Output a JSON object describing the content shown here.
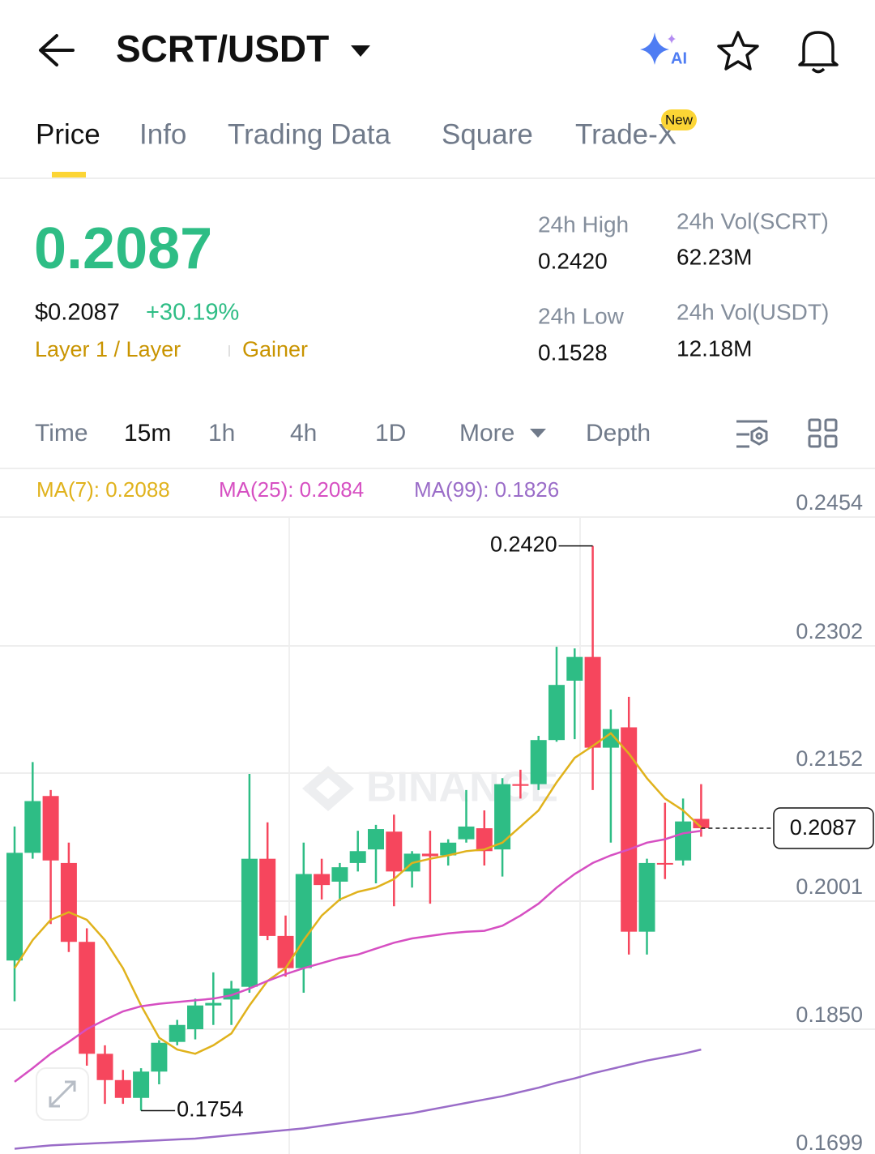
{
  "header": {
    "pair": "SCRT/USDT"
  },
  "tabs": [
    "Price",
    "Info",
    "Trading Data",
    "Square",
    "Trade-X"
  ],
  "tab_badge": "New",
  "price": {
    "last": "0.2087",
    "usd": "$0.2087",
    "change": "+30.19%",
    "tags": [
      "Layer 1 / Layer",
      "Gainer"
    ]
  },
  "stats": [
    {
      "label": "24h High",
      "value": "0.2420"
    },
    {
      "label": "24h Vol(SCRT)",
      "value": "62.23M"
    },
    {
      "label": "24h Low",
      "value": "0.1528"
    },
    {
      "label": "24h Vol(USDT)",
      "value": "12.18M"
    }
  ],
  "timeframes": [
    "Time",
    "15m",
    "1h",
    "4h",
    "1D",
    "More",
    "Depth"
  ],
  "chart": {
    "type": "candlestick",
    "watermark": "BINANCE",
    "ylim": [
      0.1699,
      0.2454
    ],
    "yticks": [
      0.2454,
      0.2302,
      0.2152,
      0.2001,
      {
        "value": 0.185,
        "label": "0.1850"
      },
      0.1699
    ],
    "grid": true,
    "up_color": "#2ebd85",
    "down_color": "#f6465d",
    "open": [
      0.1931,
      0.2058,
      0.2125,
      0.2046,
      0.1953,
      0.1821,
      0.179,
      0.1769,
      0.18,
      0.1835,
      0.185,
      0.1878,
      0.1885,
      0.19,
      0.2051,
      0.196,
      0.1922,
      0.2033,
      0.2024,
      0.2046,
      0.2062,
      0.2083,
      0.2036,
      0.2057,
      0.2055,
      0.2074,
      0.2087,
      0.2062,
      0.2139,
      0.2139,
      0.2191,
      0.2261,
      0.2289,
      0.2182,
      0.2206,
      0.1965,
      0.2046,
      0.2049,
      0.2098
    ],
    "high": [
      0.2089,
      0.2165,
      0.2132,
      0.207,
      0.1969,
      0.1831,
      0.1802,
      0.1804,
      0.1837,
      0.1861,
      0.1886,
      0.1917,
      0.1907,
      0.2151,
      0.2094,
      0.1984,
      0.207,
      0.2051,
      0.2046,
      0.2084,
      0.2091,
      0.2103,
      0.206,
      0.2084,
      0.2074,
      0.2132,
      0.2108,
      0.2146,
      0.2156,
      0.2196,
      0.2301,
      0.2299,
      0.242,
      0.2227,
      0.2242,
      0.2051,
      0.2117,
      0.2122,
      0.2139
    ],
    "low": [
      0.1883,
      0.2051,
      0.1974,
      0.1941,
      0.1807,
      0.1762,
      0.1762,
      0.1754,
      0.1785,
      0.1831,
      0.1838,
      0.1855,
      0.1855,
      0.1893,
      0.1955,
      0.1912,
      0.1893,
      0.2003,
      0.2001,
      0.2036,
      0.2022,
      0.1995,
      0.2017,
      0.1998,
      0.2043,
      0.207,
      0.2043,
      0.203,
      0.2122,
      0.2132,
      0.2189,
      0.2192,
      0.2132,
      0.207,
      0.1938,
      0.1938,
      0.2027,
      0.2043,
      0.2077
    ],
    "close": [
      0.2058,
      0.2119,
      0.2049,
      0.1953,
      0.1821,
      0.179,
      0.1769,
      0.18,
      0.1834,
      0.1855,
      0.1878,
      0.1881,
      0.1898,
      0.2051,
      0.196,
      0.1922,
      0.2033,
      0.202,
      0.2041,
      0.206,
      0.2086,
      0.2036,
      0.2057,
      0.2054,
      0.207,
      0.2089,
      0.206,
      0.2139,
      0.2137,
      0.2191,
      0.2256,
      0.2289,
      0.2182,
      0.2204,
      0.1965,
      0.2046,
      0.2045,
      0.2095,
      0.2087
    ],
    "ma": [
      {
        "legend": "MA(7): 0.2088",
        "color": "#e0b21c",
        "values": [
          0.1922,
          0.1955,
          0.1979,
          0.1988,
          0.1979,
          0.1955,
          0.1922,
          0.1878,
          0.184,
          0.1826,
          0.1821,
          0.1831,
          0.1845,
          0.1878,
          0.1907,
          0.1922,
          0.1955,
          0.1984,
          0.2003,
          0.2012,
          0.2017,
          0.2027,
          0.2046,
          0.2051,
          0.2055,
          0.206,
          0.2062,
          0.207,
          0.2089,
          0.2108,
          0.2141,
          0.217,
          0.2184,
          0.2199,
          0.2175,
          0.2146,
          0.2122,
          0.2108,
          0.2088
        ]
      },
      {
        "legend": "MA(25): 0.2084",
        "color": "#d64fc2",
        "values": [
          0.1788,
          0.1804,
          0.1821,
          0.1835,
          0.185,
          0.1861,
          0.1871,
          0.1877,
          0.188,
          0.1882,
          0.1884,
          0.1886,
          0.189,
          0.1898,
          0.1907,
          0.1915,
          0.1922,
          0.1928,
          0.1934,
          0.1938,
          0.1945,
          0.1952,
          0.1957,
          0.196,
          0.1963,
          0.1965,
          0.1966,
          0.1972,
          0.1984,
          0.1998,
          0.2017,
          0.2033,
          0.2046,
          0.2055,
          0.2062,
          0.207,
          0.2074,
          0.2081,
          0.2084
        ]
      },
      {
        "legend": "MA(99): 0.1826",
        "color": "#9a6cc8",
        "values": [
          0.1709,
          0.1711,
          0.1713,
          0.1714,
          0.1715,
          0.1716,
          0.1717,
          0.1718,
          0.1719,
          0.172,
          0.1721,
          0.1723,
          0.1725,
          0.1727,
          0.1729,
          0.1731,
          0.1733,
          0.1736,
          0.1739,
          0.1742,
          0.1745,
          0.1748,
          0.1751,
          0.1755,
          0.1759,
          0.1763,
          0.1767,
          0.1771,
          0.1776,
          0.1781,
          0.1787,
          0.1792,
          0.1798,
          0.1803,
          0.1808,
          0.1813,
          0.1817,
          0.1821,
          0.1826
        ]
      }
    ],
    "high_label": "0.2420",
    "low_label": "0.1754",
    "last_label": "0.2087"
  }
}
